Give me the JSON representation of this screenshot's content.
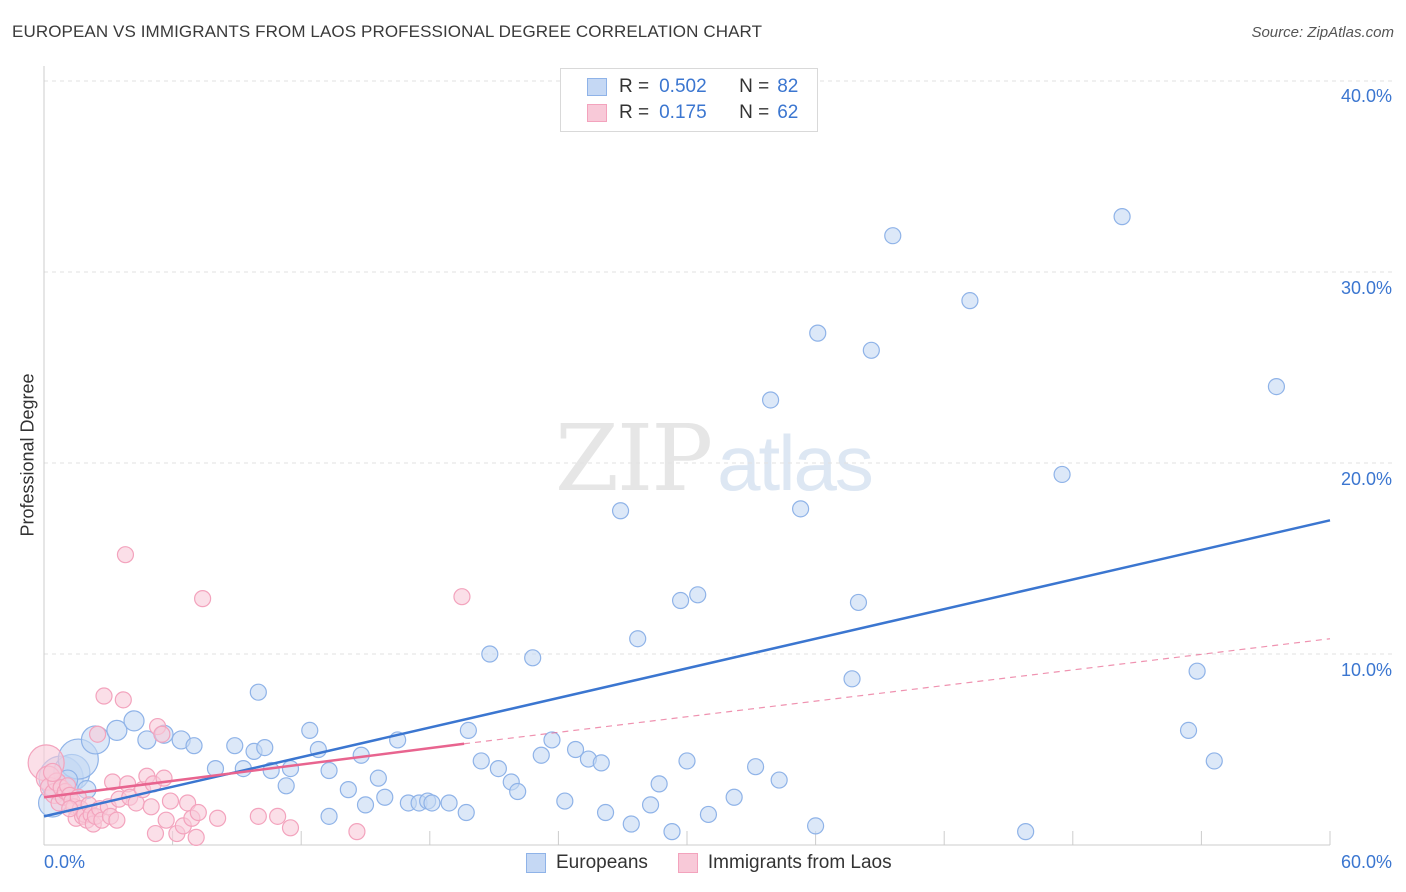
{
  "title": "EUROPEAN VS IMMIGRANTS FROM LAOS PROFESSIONAL DEGREE CORRELATION CHART",
  "source": "Source: ZipAtlas.com",
  "watermark": {
    "zip": "ZIP",
    "atlas": "atlas"
  },
  "legend_top": [
    {
      "r_label": "R =",
      "r_value": "0.502",
      "n_label": "N =",
      "n_value": "82",
      "color": "#8fb3e8",
      "fill": "#c5d8f4"
    },
    {
      "r_label": "R =",
      "r_value": "0.175",
      "n_label": "N =",
      "n_value": "62",
      "color": "#f3a3bd",
      "fill": "#f8c9d8"
    }
  ],
  "legend_bottom": [
    {
      "label": "Europeans",
      "color": "#8fb3e8",
      "fill": "#c5d8f4"
    },
    {
      "label": "Immigrants from Laos",
      "color": "#f3a3bd",
      "fill": "#f8c9d8"
    }
  ],
  "chart_data": {
    "type": "scatter",
    "title": "EUROPEAN VS IMMIGRANTS FROM LAOS PROFESSIONAL DEGREE CORRELATION CHART",
    "xlabel": "",
    "ylabel": "Professional Degree",
    "xlim": [
      0,
      60
    ],
    "ylim": [
      0,
      42
    ],
    "y_ticks": [
      10,
      20,
      30,
      40
    ],
    "y_tick_labels": [
      "10.0%",
      "20.0%",
      "30.0%",
      "40.0%"
    ],
    "x_tick_labels": [
      "0.0%",
      "60.0%"
    ],
    "grid": true,
    "series": [
      {
        "name": "Europeans",
        "color": "#3b76d0",
        "point_fill": "#c5d8f4",
        "point_stroke": "#8fb3e8",
        "trend": {
          "x0": 0,
          "y0": 1.5,
          "x1": 60,
          "y1": 17.0,
          "style": "solid"
        },
        "points": [
          [
            0.4,
            2.2,
            14
          ],
          [
            0.8,
            3.5,
            22
          ],
          [
            1.0,
            3.0,
            12
          ],
          [
            1.3,
            3.8,
            18
          ],
          [
            1.6,
            4.5,
            20
          ],
          [
            2.4,
            5.5,
            14
          ],
          [
            3.4,
            6.0,
            10
          ],
          [
            4.2,
            6.5,
            10
          ],
          [
            4.8,
            5.5,
            9
          ],
          [
            5.6,
            5.8,
            9
          ],
          [
            6.4,
            5.5,
            9
          ],
          [
            7.0,
            5.2,
            8
          ],
          [
            8.0,
            4.0,
            8
          ],
          [
            9.3,
            4.0,
            8
          ],
          [
            8.9,
            5.2,
            8
          ],
          [
            9.8,
            4.9,
            8
          ],
          [
            10.3,
            5.1,
            8
          ],
          [
            10.0,
            8.0,
            8
          ],
          [
            10.6,
            3.9,
            8
          ],
          [
            11.3,
            3.1,
            8
          ],
          [
            11.5,
            4.0,
            8
          ],
          [
            12.4,
            6.0,
            8
          ],
          [
            12.8,
            5.0,
            8
          ],
          [
            13.3,
            3.9,
            8
          ],
          [
            13.3,
            1.5,
            8
          ],
          [
            14.2,
            2.9,
            8
          ],
          [
            14.8,
            4.7,
            8
          ],
          [
            15.0,
            2.1,
            8
          ],
          [
            15.6,
            3.5,
            8
          ],
          [
            15.9,
            2.5,
            8
          ],
          [
            16.5,
            5.5,
            8
          ],
          [
            17.0,
            2.2,
            8
          ],
          [
            17.5,
            2.2,
            8
          ],
          [
            17.9,
            2.3,
            8
          ],
          [
            18.1,
            2.2,
            8
          ],
          [
            18.9,
            2.2,
            8
          ],
          [
            19.7,
            1.7,
            8
          ],
          [
            19.8,
            6.0,
            8
          ],
          [
            20.4,
            4.4,
            8
          ],
          [
            20.8,
            10.0,
            8
          ],
          [
            21.2,
            4.0,
            8
          ],
          [
            21.8,
            3.3,
            8
          ],
          [
            22.1,
            2.8,
            8
          ],
          [
            22.8,
            9.8,
            8
          ],
          [
            23.2,
            4.7,
            8
          ],
          [
            23.7,
            5.5,
            8
          ],
          [
            24.3,
            2.3,
            8
          ],
          [
            24.8,
            5.0,
            8
          ],
          [
            25.4,
            4.5,
            8
          ],
          [
            26.0,
            4.3,
            8
          ],
          [
            26.2,
            1.7,
            8
          ],
          [
            26.9,
            17.5,
            8
          ],
          [
            27.4,
            1.1,
            8
          ],
          [
            27.7,
            10.8,
            8
          ],
          [
            28.3,
            2.1,
            8
          ],
          [
            28.7,
            3.2,
            8
          ],
          [
            29.3,
            0.7,
            8
          ],
          [
            29.7,
            12.8,
            8
          ],
          [
            30.0,
            4.4,
            8
          ],
          [
            30.5,
            13.1,
            8
          ],
          [
            31.0,
            1.6,
            8
          ],
          [
            32.2,
            2.5,
            8
          ],
          [
            33.2,
            4.1,
            8
          ],
          [
            33.9,
            23.3,
            8
          ],
          [
            34.3,
            3.4,
            8
          ],
          [
            35.3,
            17.6,
            8
          ],
          [
            36.0,
            1.0,
            8
          ],
          [
            36.1,
            26.8,
            8
          ],
          [
            37.7,
            8.7,
            8
          ],
          [
            38.0,
            12.7,
            8
          ],
          [
            38.6,
            25.9,
            8
          ],
          [
            39.6,
            31.9,
            8
          ],
          [
            43.2,
            28.5,
            8
          ],
          [
            45.8,
            0.7,
            8
          ],
          [
            47.5,
            19.4,
            8
          ],
          [
            50.3,
            32.9,
            8
          ],
          [
            53.4,
            6.0,
            8
          ],
          [
            53.8,
            9.1,
            8
          ],
          [
            54.6,
            4.4,
            8
          ],
          [
            57.5,
            24.0,
            8
          ],
          [
            1.1,
            3.4,
            10
          ],
          [
            2.0,
            2.9,
            9
          ]
        ]
      },
      {
        "name": "Immigrants from Laos",
        "color": "#e8648f",
        "point_fill": "#f8c9d8",
        "point_stroke": "#f3a3bd",
        "trend": {
          "x0": 0,
          "y0": 2.5,
          "x1": 19.6,
          "y1": 5.3,
          "style": "solid"
        },
        "trend_ext": {
          "x0": 19.6,
          "y0": 5.3,
          "x1": 60,
          "y1": 10.8,
          "style": "dashed"
        },
        "points": [
          [
            0.1,
            4.3,
            18
          ],
          [
            0.2,
            3.5,
            12
          ],
          [
            0.3,
            3.0,
            10
          ],
          [
            0.5,
            2.7,
            10
          ],
          [
            0.6,
            3.3,
            9
          ],
          [
            0.7,
            2.2,
            8
          ],
          [
            0.8,
            3.0,
            8
          ],
          [
            0.9,
            2.5,
            8
          ],
          [
            1.0,
            2.8,
            8
          ],
          [
            1.1,
            3.1,
            8
          ],
          [
            1.2,
            2.6,
            8
          ],
          [
            1.3,
            2.3,
            8
          ],
          [
            1.4,
            2.0,
            8
          ],
          [
            1.5,
            1.4,
            8
          ],
          [
            1.6,
            2.5,
            8
          ],
          [
            1.7,
            1.9,
            8
          ],
          [
            1.8,
            1.5,
            8
          ],
          [
            1.9,
            1.6,
            8
          ],
          [
            2.0,
            1.3,
            8
          ],
          [
            2.1,
            2.1,
            8
          ],
          [
            2.2,
            1.6,
            8
          ],
          [
            2.3,
            1.1,
            8
          ],
          [
            2.4,
            1.5,
            8
          ],
          [
            2.5,
            5.8,
            8
          ],
          [
            2.6,
            1.9,
            8
          ],
          [
            2.7,
            1.3,
            8
          ],
          [
            2.8,
            7.8,
            8
          ],
          [
            3.0,
            2.0,
            8
          ],
          [
            3.1,
            1.5,
            8
          ],
          [
            3.2,
            3.3,
            8
          ],
          [
            3.4,
            1.3,
            8
          ],
          [
            3.5,
            2.4,
            8
          ],
          [
            3.7,
            7.6,
            8
          ],
          [
            3.8,
            15.2,
            8
          ],
          [
            3.9,
            3.2,
            8
          ],
          [
            4.0,
            2.5,
            8
          ],
          [
            4.3,
            2.2,
            8
          ],
          [
            4.6,
            2.9,
            8
          ],
          [
            4.8,
            3.6,
            8
          ],
          [
            5.0,
            2.0,
            8
          ],
          [
            5.1,
            3.2,
            8
          ],
          [
            5.2,
            0.6,
            8
          ],
          [
            5.3,
            6.2,
            8
          ],
          [
            5.5,
            5.8,
            8
          ],
          [
            5.6,
            3.5,
            8
          ],
          [
            5.7,
            1.3,
            8
          ],
          [
            5.9,
            2.3,
            8
          ],
          [
            6.2,
            0.6,
            8
          ],
          [
            6.5,
            1.0,
            8
          ],
          [
            6.7,
            2.2,
            8
          ],
          [
            6.9,
            1.4,
            8
          ],
          [
            7.1,
            0.4,
            8
          ],
          [
            7.2,
            1.7,
            8
          ],
          [
            7.4,
            12.9,
            8
          ],
          [
            8.1,
            1.4,
            8
          ],
          [
            10.0,
            1.5,
            8
          ],
          [
            10.9,
            1.5,
            8
          ],
          [
            11.5,
            0.9,
            8
          ],
          [
            14.6,
            0.7,
            8
          ],
          [
            19.5,
            13.0,
            8
          ],
          [
            0.4,
            3.8,
            9
          ],
          [
            1.2,
            1.9,
            8
          ]
        ]
      }
    ]
  }
}
